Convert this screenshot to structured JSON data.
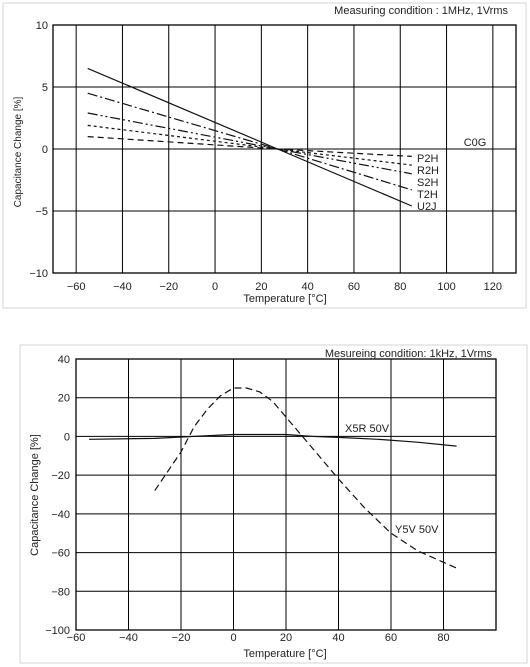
{
  "chart_data": [
    {
      "type": "line",
      "condition": "Measuring condition : 1MHz, 1Vrms",
      "class_label": "C0G",
      "xlabel": "Temperature [°C]",
      "ylabel": "Capacitance Change [%]",
      "xlim": [
        -70,
        130
      ],
      "ylim": [
        -10,
        10
      ],
      "xticks": [
        -60,
        -40,
        -20,
        0,
        20,
        40,
        60,
        80,
        100,
        120
      ],
      "yticks": [
        10,
        5,
        0,
        -5,
        -10
      ],
      "grid": true,
      "series": [
        {
          "name": "P2H",
          "dash": "6,4",
          "x": [
            -55,
            27,
            85
          ],
          "y": [
            1.0,
            0.0,
            -0.6
          ]
        },
        {
          "name": "R2H",
          "dash": "3,3",
          "x": [
            -55,
            27,
            85
          ],
          "y": [
            1.9,
            0.0,
            -1.3
          ]
        },
        {
          "name": "S2H",
          "dash": "10,3,2,3,2,3",
          "x": [
            -55,
            27,
            85
          ],
          "y": [
            2.9,
            0.0,
            -2.0
          ]
        },
        {
          "name": "T2H",
          "dash": "10,3,2,3",
          "x": [
            -55,
            27,
            85
          ],
          "y": [
            4.5,
            0.0,
            -3.3
          ]
        },
        {
          "name": "U2J",
          "dash": "",
          "x": [
            -55,
            27,
            85
          ],
          "y": [
            6.5,
            0.0,
            -4.6
          ]
        }
      ]
    },
    {
      "type": "line",
      "condition": "Mesureing condition: 1kHz, 1Vrms",
      "xlabel": "Temperature [°C]",
      "ylabel": "Capacitance Change [%]",
      "xlim": [
        -60,
        100
      ],
      "ylim": [
        -100,
        40
      ],
      "xticks": [
        -60,
        -40,
        -20,
        0,
        20,
        40,
        60,
        80
      ],
      "yticks": [
        40,
        20,
        0,
        -20,
        -40,
        -60,
        -80,
        -100
      ],
      "grid": true,
      "series": [
        {
          "name": "X5R 50V",
          "dash": "",
          "x": [
            -55,
            -30,
            -15,
            0,
            10,
            20,
            30,
            40,
            55,
            70,
            85
          ],
          "y": [
            -1.5,
            -1,
            0,
            1,
            1,
            1,
            0,
            -0.5,
            -1.5,
            -3,
            -5
          ]
        },
        {
          "name": "Y5V 50V",
          "dash": "7,4",
          "x": [
            -30,
            -20,
            -15,
            -10,
            -5,
            0,
            5,
            10,
            15,
            20,
            30,
            40,
            50,
            60,
            70,
            80,
            85
          ],
          "y": [
            -28,
            -8,
            5,
            14,
            21,
            25,
            25,
            23,
            18,
            10,
            -6,
            -22,
            -37,
            -50,
            -59,
            -65,
            -68
          ]
        }
      ]
    }
  ]
}
